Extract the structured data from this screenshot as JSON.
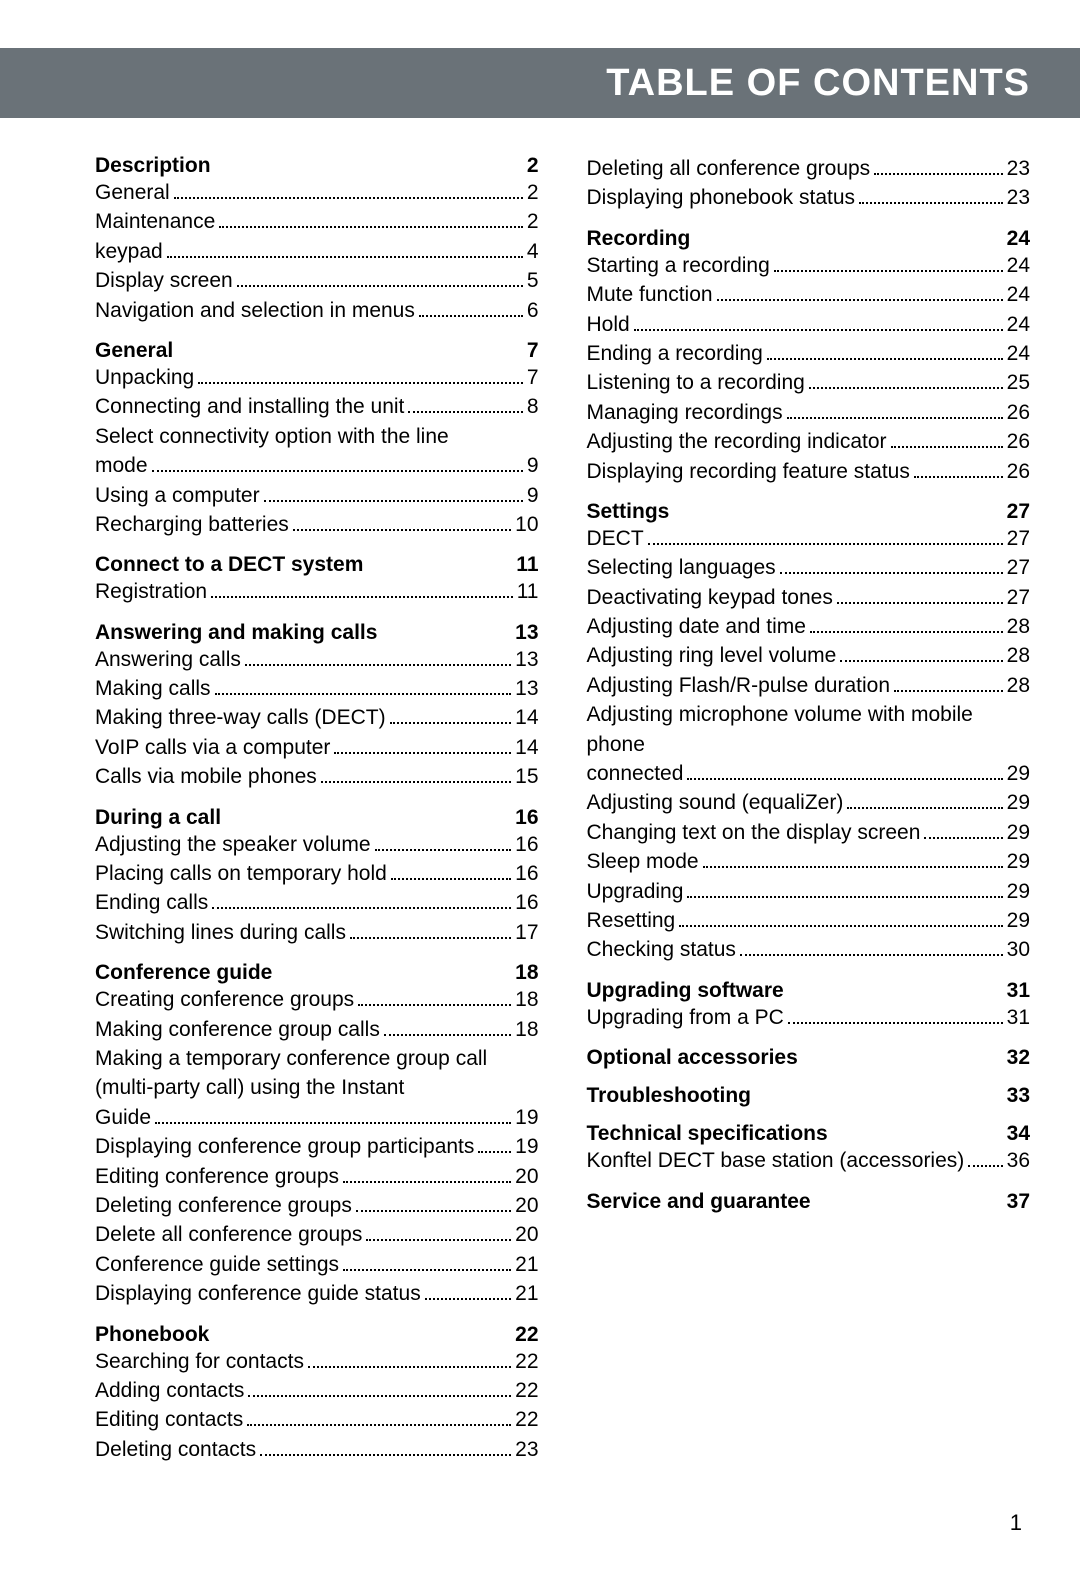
{
  "header": {
    "title": "TABLE OF CONTENTS"
  },
  "page_number": "1",
  "columns": [
    {
      "sections": [
        {
          "title": "Description",
          "page": "2",
          "entries": [
            {
              "t": "General",
              "p": "2"
            },
            {
              "t": "Maintenance",
              "p": "2"
            },
            {
              "t": "keypad",
              "p": "4"
            },
            {
              "t": "Display screen",
              "p": "5"
            },
            {
              "t": "Navigation and selection in menus",
              "p": "6"
            }
          ]
        },
        {
          "title": "General",
          "page": "7",
          "entries": [
            {
              "t": "Unpacking",
              "p": "7"
            },
            {
              "t": "Connecting and installing the unit",
              "p": "8"
            },
            {
              "t": "Select connectivity option with the line mode",
              "p": "9",
              "multiline": true
            },
            {
              "t": "Using a computer",
              "p": "9"
            },
            {
              "t": "Recharging batteries",
              "p": "10"
            }
          ]
        },
        {
          "title": "Connect to a DECT system",
          "page": "11",
          "entries": [
            {
              "t": "Registration",
              "p": "11"
            }
          ]
        },
        {
          "title": "Answering and making calls",
          "page": "13",
          "entries": [
            {
              "t": "Answering calls",
              "p": "13"
            },
            {
              "t": "Making calls",
              "p": "13"
            },
            {
              "t": "Making three-way calls (DECT)",
              "p": "14"
            },
            {
              "t": "VoIP calls via a computer",
              "p": "14"
            },
            {
              "t": "Calls via mobile phones",
              "p": "15"
            }
          ]
        },
        {
          "title": "During a call",
          "page": "16",
          "entries": [
            {
              "t": "Adjusting the speaker volume",
              "p": "16"
            },
            {
              "t": "Placing calls on temporary hold",
              "p": "16"
            },
            {
              "t": "Ending calls",
              "p": "16"
            },
            {
              "t": "Switching lines during calls",
              "p": "17"
            }
          ]
        },
        {
          "title": "Conference guide",
          "page": "18",
          "entries": [
            {
              "t": "Creating conference groups",
              "p": "18"
            },
            {
              "t": "Making conference group calls",
              "p": "18"
            },
            {
              "t": "Making a temporary conference group call (multi-party call) using the Instant Guide",
              "p": "19",
              "multiline": true
            },
            {
              "t": "Displaying conference group participants",
              "p": "19"
            },
            {
              "t": "Editing conference groups",
              "p": "20"
            },
            {
              "t": "Deleting conference groups",
              "p": "20"
            },
            {
              "t": "Delete all conference groups",
              "p": "20"
            },
            {
              "t": "Conference guide settings",
              "p": "21"
            },
            {
              "t": "Displaying conference guide status",
              "p": "21"
            }
          ]
        },
        {
          "title": "Phonebook",
          "page": "22",
          "entries": [
            {
              "t": "Searching for contacts",
              "p": "22"
            },
            {
              "t": "Adding contacts",
              "p": "22"
            },
            {
              "t": "Editing contacts",
              "p": "22"
            },
            {
              "t": "Deleting contacts",
              "p": "23"
            }
          ]
        }
      ]
    },
    {
      "sections": [
        {
          "title": null,
          "page": null,
          "entries": [
            {
              "t": "Deleting all conference groups",
              "p": "23"
            },
            {
              "t": "Displaying phonebook status",
              "p": "23"
            }
          ]
        },
        {
          "title": "Recording",
          "page": "24",
          "entries": [
            {
              "t": "Starting a recording",
              "p": "24"
            },
            {
              "t": "Mute function",
              "p": "24"
            },
            {
              "t": "Hold",
              "p": "24"
            },
            {
              "t": "Ending a recording",
              "p": "24"
            },
            {
              "t": "Listening to a recording",
              "p": "25"
            },
            {
              "t": "Managing recordings",
              "p": "26"
            },
            {
              "t": "Adjusting the recording indicator",
              "p": "26"
            },
            {
              "t": "Displaying recording feature status",
              "p": "26"
            }
          ]
        },
        {
          "title": "Settings",
          "page": "27",
          "entries": [
            {
              "t": "DECT",
              "p": "27"
            },
            {
              "t": "Selecting languages",
              "p": "27"
            },
            {
              "t": "Deactivating keypad tones",
              "p": "27"
            },
            {
              "t": "Adjusting date and time",
              "p": "28"
            },
            {
              "t": "Adjusting ring level volume",
              "p": "28"
            },
            {
              "t": "Adjusting Flash/R-pulse duration",
              "p": "28"
            },
            {
              "t": "Adjusting microphone volume with mobile phone connected",
              "p": "29",
              "multiline": true
            },
            {
              "t": "Adjusting sound (equaliZer)",
              "p": "29"
            },
            {
              "t": "Changing text on the display screen",
              "p": "29"
            },
            {
              "t": "Sleep mode",
              "p": "29"
            },
            {
              "t": "Upgrading",
              "p": "29"
            },
            {
              "t": "Resetting",
              "p": "29"
            },
            {
              "t": "Checking status",
              "p": "30"
            }
          ]
        },
        {
          "title": "Upgrading software",
          "page": "31",
          "entries": [
            {
              "t": "Upgrading from a PC",
              "p": "31"
            }
          ]
        },
        {
          "title": "Optional accessories",
          "page": "32",
          "entries": []
        },
        {
          "title": "Troubleshooting",
          "page": "33",
          "entries": []
        },
        {
          "title": "Technical specifications",
          "page": "34",
          "entries": [
            {
              "t": "Konftel DECT base station (accessories)",
              "p": "36"
            }
          ]
        },
        {
          "title": "Service and guarantee",
          "page": "37",
          "entries": []
        }
      ]
    }
  ]
}
